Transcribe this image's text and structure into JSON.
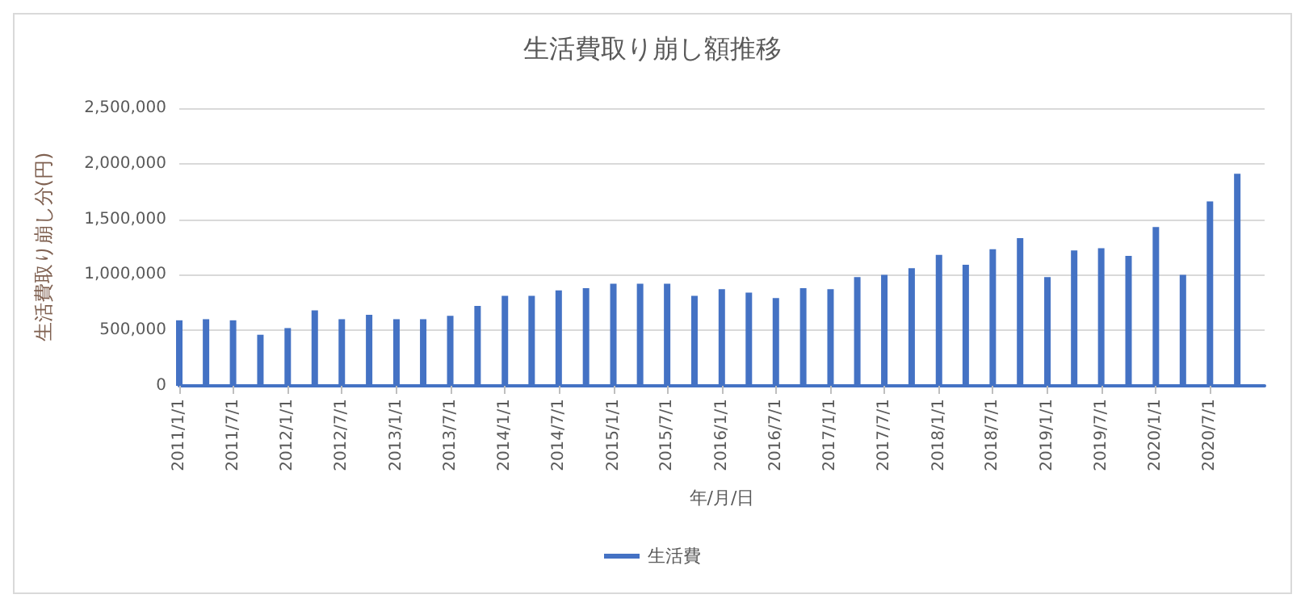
{
  "chart_data": {
    "type": "bar",
    "title": "生活費取り崩し額推移",
    "xlabel": "年/月/日",
    "ylabel": "生活費取り崩し分(円)",
    "x": [
      "2011-01-01",
      "2011-04-01",
      "2011-07-01",
      "2011-10-01",
      "2012-01-01",
      "2012-04-01",
      "2012-07-01",
      "2012-10-01",
      "2013-01-01",
      "2013-04-01",
      "2013-07-01",
      "2013-10-01",
      "2014-01-01",
      "2014-04-01",
      "2014-07-01",
      "2014-10-01",
      "2015-01-01",
      "2015-04-01",
      "2015-07-01",
      "2015-10-01",
      "2016-01-01",
      "2016-04-01",
      "2016-07-01",
      "2016-10-01",
      "2017-01-01",
      "2017-04-01",
      "2017-07-01",
      "2017-10-01",
      "2018-01-01",
      "2018-04-01",
      "2018-07-01",
      "2018-10-01",
      "2019-01-01",
      "2019-04-01",
      "2019-07-01",
      "2019-10-01",
      "2020-01-01",
      "2020-04-01",
      "2020-07-01",
      "2020-10-01"
    ],
    "series": [
      {
        "name": "生活費",
        "color": "#4472c4",
        "values": [
          590000,
          600000,
          590000,
          460000,
          520000,
          680000,
          600000,
          640000,
          600000,
          600000,
          630000,
          720000,
          810000,
          810000,
          860000,
          880000,
          920000,
          920000,
          920000,
          810000,
          870000,
          840000,
          790000,
          880000,
          870000,
          980000,
          1000000,
          1060000,
          1180000,
          1090000,
          1230000,
          1330000,
          980000,
          1220000,
          1240000,
          1170000,
          1430000,
          1000000,
          1660000,
          1910000
        ]
      }
    ],
    "xlim": [
      "2011-01-01",
      "2021-01-01"
    ],
    "xticks": [
      {
        "value": "2011-01-01",
        "label": "2011/1/1"
      },
      {
        "value": "2011-07-01",
        "label": "2011/7/1"
      },
      {
        "value": "2012-01-01",
        "label": "2012/1/1"
      },
      {
        "value": "2012-07-01",
        "label": "2012/7/1"
      },
      {
        "value": "2013-01-01",
        "label": "2013/1/1"
      },
      {
        "value": "2013-07-01",
        "label": "2013/7/1"
      },
      {
        "value": "2014-01-01",
        "label": "2014/1/1"
      },
      {
        "value": "2014-07-01",
        "label": "2014/7/1"
      },
      {
        "value": "2015-01-01",
        "label": "2015/1/1"
      },
      {
        "value": "2015-07-01",
        "label": "2015/7/1"
      },
      {
        "value": "2016-01-01",
        "label": "2016/1/1"
      },
      {
        "value": "2016-07-01",
        "label": "2016/7/1"
      },
      {
        "value": "2017-01-01",
        "label": "2017/1/1"
      },
      {
        "value": "2017-07-01",
        "label": "2017/7/1"
      },
      {
        "value": "2018-01-01",
        "label": "2018/1/1"
      },
      {
        "value": "2018-07-01",
        "label": "2018/7/1"
      },
      {
        "value": "2019-01-01",
        "label": "2019/1/1"
      },
      {
        "value": "2019-07-01",
        "label": "2019/7/1"
      },
      {
        "value": "2020-01-01",
        "label": "2020/1/1"
      },
      {
        "value": "2020-07-01",
        "label": "2020/7/1"
      }
    ],
    "ylim": [
      0,
      2500000
    ],
    "yticks": [
      0,
      {
        "value": 500000,
        "label": "500,000"
      },
      {
        "value": 1000000,
        "label": "1,000,000"
      },
      {
        "value": 1500000,
        "label": "1,500,000"
      },
      {
        "value": 2000000,
        "label": "2,000,000"
      },
      {
        "value": 2500000,
        "label": "2,500,000"
      }
    ],
    "grid": "y",
    "legend": "bottom"
  }
}
